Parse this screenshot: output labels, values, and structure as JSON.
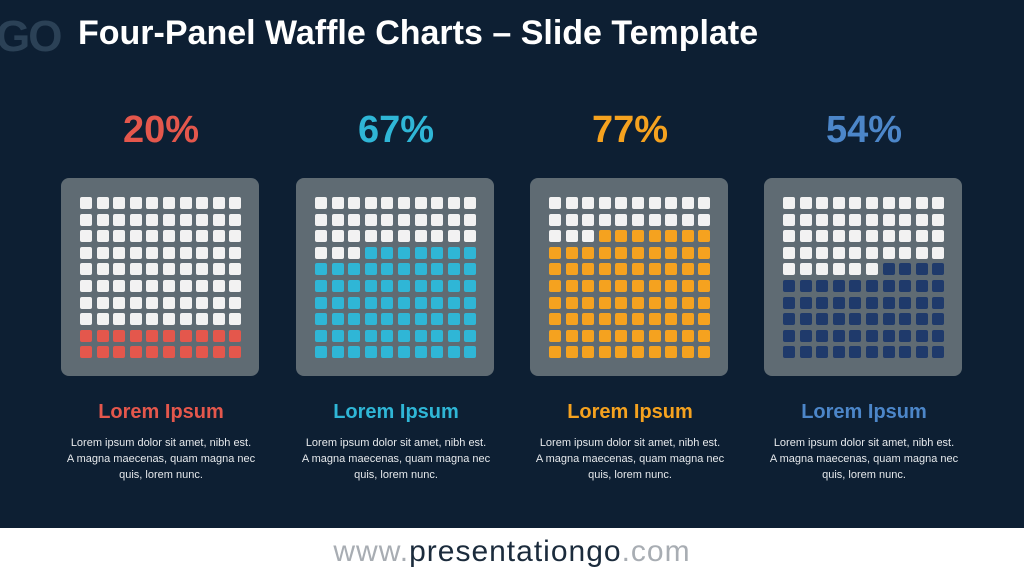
{
  "slide": {
    "logo_text": "GO",
    "title": "Four-Panel Waffle Charts – Slide Template"
  },
  "chart_data": [
    {
      "type": "waffle",
      "grid": [
        10,
        10
      ],
      "value": 20,
      "value_label": "20%",
      "heading": "Lorem Ipsum",
      "body": [
        "Lorem ipsum dolor sit amet, nibh est.",
        "A magna maecenas, quam magna nec",
        "quis, lorem nunc."
      ],
      "color": "#e4574c",
      "empty_color": "#f2f2f2",
      "panel_color": "#5f6b73",
      "heading_color": "#e4574c"
    },
    {
      "type": "waffle",
      "grid": [
        10,
        10
      ],
      "value": 67,
      "value_label": "67%",
      "heading": "Lorem Ipsum",
      "body": [
        "Lorem ipsum dolor sit amet, nibh est.",
        "A magna maecenas, quam magna nec",
        "quis, lorem nunc."
      ],
      "color": "#2fb6d6",
      "empty_color": "#f2f2f2",
      "panel_color": "#5f6b73",
      "heading_color": "#2fb6d6"
    },
    {
      "type": "waffle",
      "grid": [
        10,
        10
      ],
      "value": 77,
      "value_label": "77%",
      "heading": "Lorem Ipsum",
      "body": [
        "Lorem ipsum dolor sit amet, nibh est.",
        "A magna maecenas, quam magna nec",
        "quis, lorem nunc."
      ],
      "color": "#f5a21f",
      "empty_color": "#f2f2f2",
      "panel_color": "#5f6b73",
      "heading_color": "#f5a21f"
    },
    {
      "type": "waffle",
      "grid": [
        10,
        10
      ],
      "value": 54,
      "value_label": "54%",
      "heading": "Lorem Ipsum",
      "body": [
        "Lorem ipsum dolor sit amet, nibh est.",
        "A magna maecenas, quam magna nec",
        "quis, lorem nunc."
      ],
      "color": "#1f3a6b",
      "empty_color": "#f2f2f2",
      "panel_color": "#5f6b73",
      "heading_color": "#4c86c9",
      "value_color": "#4c86c9"
    }
  ],
  "footer": {
    "www": "www.",
    "brand": "presentationgo",
    "com": ".com"
  }
}
